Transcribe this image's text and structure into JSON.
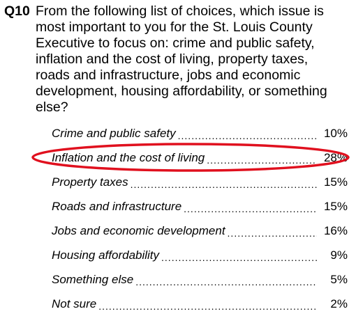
{
  "question": {
    "number": "Q10",
    "text": "From the following list of choices, which issue is most important to you for the St. Louis County Executive to focus on: crime and public safety, inflation and the cost of living, property taxes, roads and infrastructure, jobs and economic development, housing affordability, or something else?"
  },
  "answers": [
    {
      "label": "Crime and public safety",
      "value": "10%"
    },
    {
      "label": "Inflation and the cost of living",
      "value": "28%"
    },
    {
      "label": "Property taxes",
      "value": "15%"
    },
    {
      "label": "Roads and infrastructure",
      "value": "15%"
    },
    {
      "label": "Jobs and economic development",
      "value": "16%"
    },
    {
      "label": "Housing affordability",
      "value": "9%"
    },
    {
      "label": "Something else",
      "value": "5%"
    },
    {
      "label": "Not sure",
      "value": "2%"
    }
  ],
  "highlight": {
    "color": "#e0101e",
    "answer_label": "Inflation and the cost of living"
  }
}
